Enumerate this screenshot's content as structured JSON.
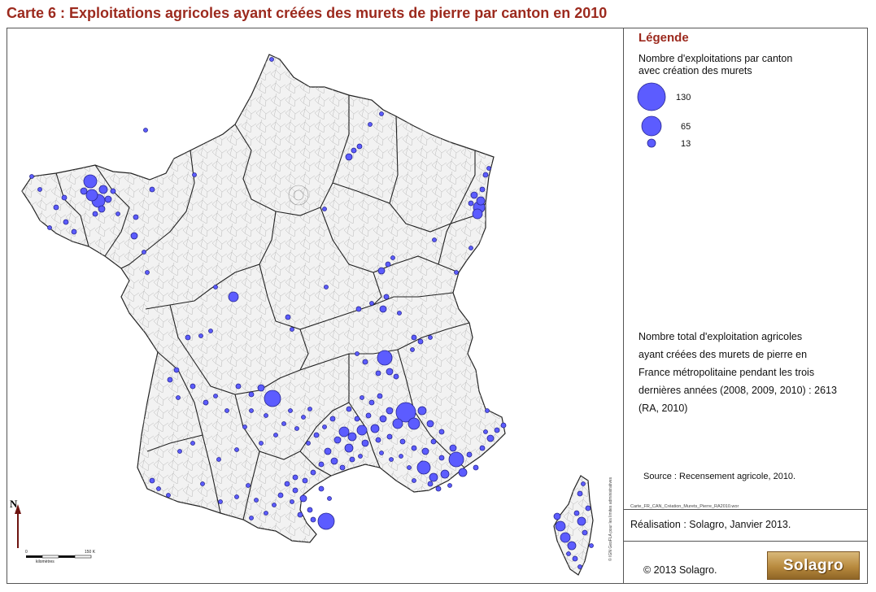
{
  "title": "Carte 6 : Exploitations agricoles ayant créées des murets de pierre par canton en 2010",
  "legend": {
    "heading": "Légende",
    "subtitle_line1": "Nombre d'exploitations par canton",
    "subtitle_line2": "avec création des murets",
    "sizes": [
      {
        "label": "130",
        "value": 130
      },
      {
        "label": "65",
        "value": 65
      },
      {
        "label": "13",
        "value": 13
      }
    ]
  },
  "total": {
    "line1": "Nombre total d'exploitation agricoles",
    "line2": "ayant créées des murets de pierre en",
    "line3": "France métropolitaine pendant les trois",
    "line4": "dernières années (2008, 2009, 2010) : 2613",
    "line5": "(RA, 2010)"
  },
  "source": "Source : Recensement agricole, 2010.",
  "file_name": "Carte_FR_CAN_Création_Murets_Pierre_RA2010.wor",
  "realisation": "Réalisation : Solagro, Janvier 2013.",
  "copyright": "© 2013 Solagro.",
  "logo_text": "Solagro",
  "vertical_credit": "© IGN GeoFLA pour les limites administratives",
  "north_label": "N",
  "scale": {
    "start": "0",
    "end": "150 K",
    "unit": "kilomètres"
  },
  "colors": {
    "symbol": "#5c5cff",
    "symbol_stroke": "#26268f",
    "title": "#9c2a1e",
    "land": "#f2f2f2",
    "dept_border": "#222222"
  }
}
